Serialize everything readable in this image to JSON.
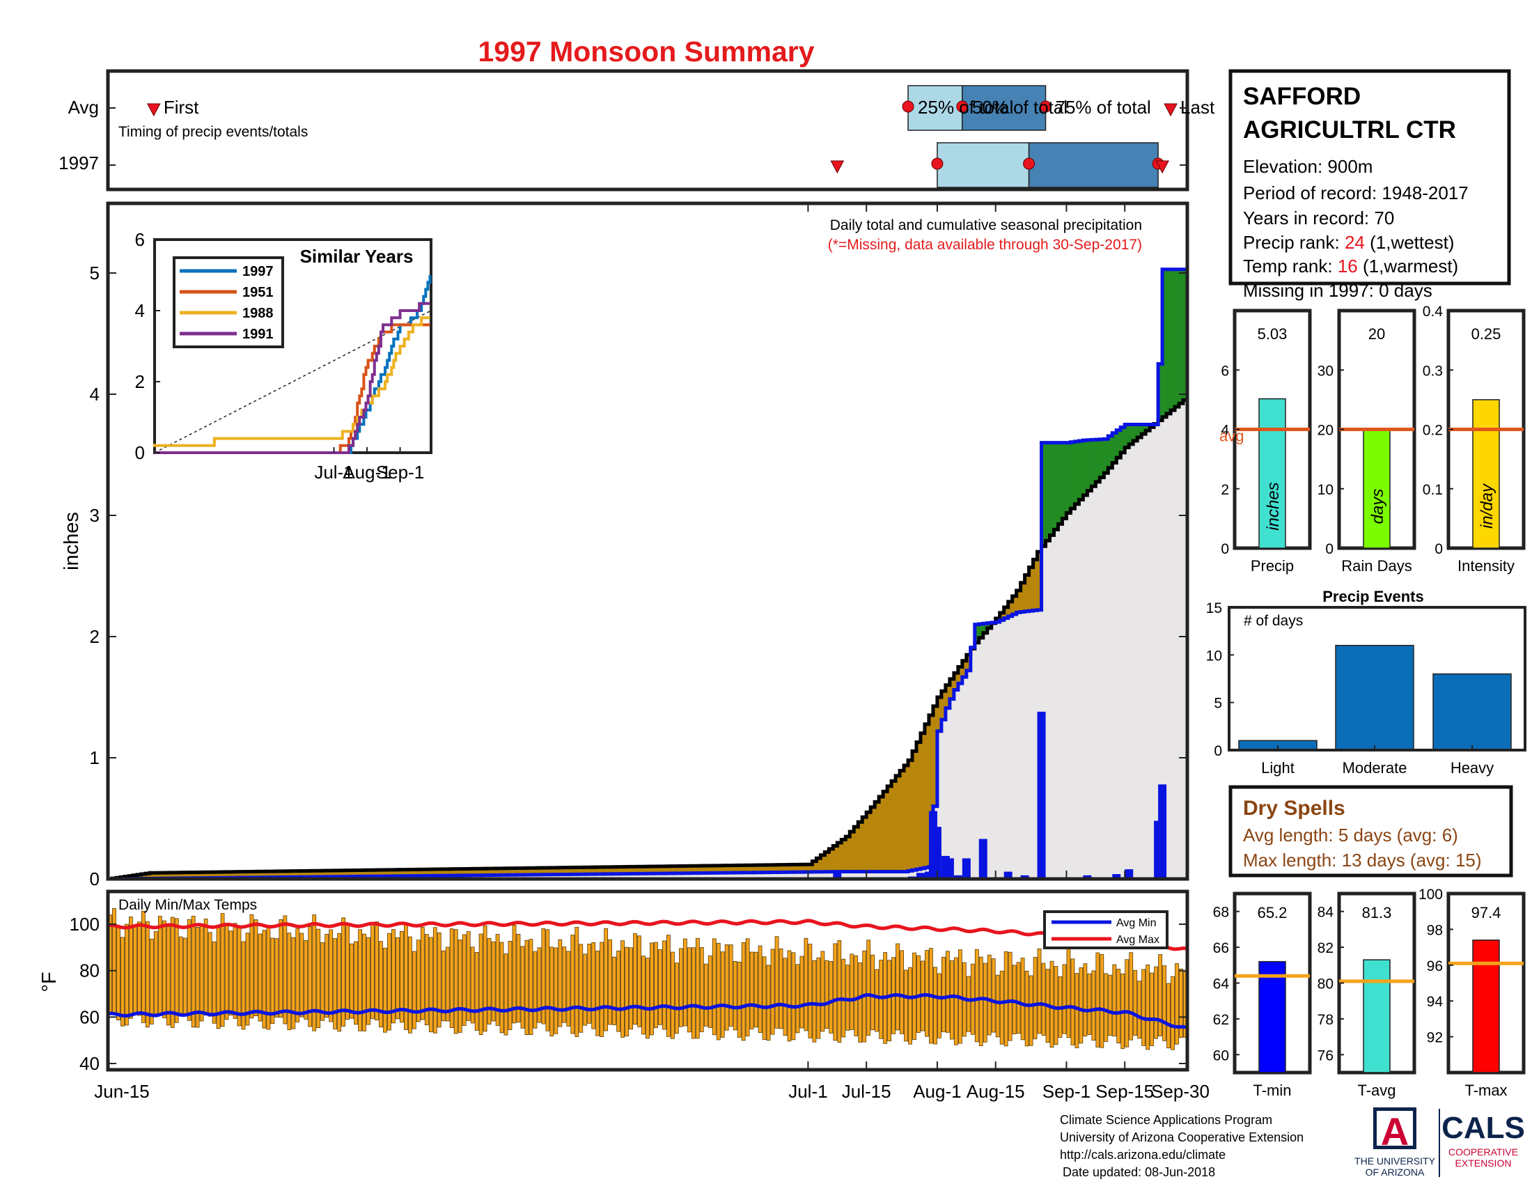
{
  "title": "1997 Monsoon Summary",
  "colors": {
    "title": "#e41a1c",
    "deficit_fill": "#b8860b",
    "surplus_fill": "#228b22",
    "normal_fill": "#e8e6e6",
    "obs_line": "#0a14e0",
    "daily_bar": "#0a14e0",
    "temp_bar": "#f5a31a",
    "avg_min": "#0a14e0",
    "avg_max": "#e8141e",
    "light_blue": "#add8e6",
    "steel_blue": "#4682b4",
    "marker_red": "#e8141e",
    "dry_spell_text": "#8b4513",
    "rank_red": "#e8141e",
    "events_bar": "#0b6db8"
  },
  "timing": {
    "rows": [
      "Avg",
      "1997"
    ],
    "caption": "Timing of precip events/totals",
    "labels": {
      "first": "First",
      "p25": "25% of total",
      "p50": "50% of total",
      "p75": "75% of total",
      "last": "Last"
    },
    "avg": {
      "first": "06-26",
      "p25": "07-25",
      "p50": "08-07",
      "p75": "08-27",
      "last": "09-26"
    },
    "y1997": {
      "first": "07-08",
      "p25": "08-01",
      "p50": "08-23",
      "p75": "09-23",
      "last": "09-24"
    }
  },
  "station": {
    "name_line1": "SAFFORD",
    "name_line2": "AGRICULTRL CTR",
    "elevation": "Elevation: 900m",
    "period": "Period of record: 1948-2017",
    "years": "Years in record: 70",
    "precip_rank_prefix": "Precip rank: ",
    "precip_rank_value": "24",
    "precip_rank_suffix": " (1,wettest)",
    "temp_rank_prefix": "Temp rank: ",
    "temp_rank_value": "16",
    "temp_rank_suffix": " (1,warmest)",
    "missing": "Missing in 1997: 0 days"
  },
  "main_chart": {
    "note1": "Daily total and cumulative seasonal precipitation",
    "note2": "(*=Missing, data available through 30-Sep-2017)",
    "ylabel": "inches",
    "yticks": [
      0,
      1,
      2,
      3,
      4,
      5
    ],
    "xticks": [
      "Jun-15",
      "Jul-1",
      "Jul-15",
      "Aug-1",
      "Aug-15",
      "Sep-1",
      "Sep-15",
      "Sep-30"
    ]
  },
  "inset": {
    "title": "Similar Years",
    "xticks": [
      "Jul-1",
      "Aug-1",
      "Sep-1"
    ],
    "yticks": [
      0,
      2,
      4,
      6
    ],
    "legend": [
      "1997",
      "1951",
      "1988",
      "1991"
    ],
    "colors": [
      "#0072bd",
      "#d95319",
      "#edb120",
      "#7e2f8e"
    ]
  },
  "temps_chart": {
    "label": "Daily Min/Max Temps",
    "ylabel": "°F",
    "yticks": [
      40,
      60,
      80,
      100
    ],
    "legend_min": "Avg Min",
    "legend_max": "Avg Max"
  },
  "summary_bars": [
    {
      "label": "Precip",
      "value_text": "5.03",
      "value": 5.03,
      "avg": 4.0,
      "unit": "inches",
      "ymax": 8,
      "yticks": [
        0,
        2,
        4,
        6
      ],
      "color": "#40e0d0",
      "avg_label": "avg"
    },
    {
      "label": "Rain Days",
      "value_text": "20",
      "value": 20,
      "avg": 20,
      "unit": "days",
      "ymax": 40,
      "yticks": [
        0,
        10,
        20,
        30
      ],
      "color": "#7cfc00"
    },
    {
      "label": "Intensity",
      "value_text": "0.25",
      "value": 0.25,
      "avg": 0.2,
      "unit": "in/day",
      "ymax": 0.4,
      "yticks": [
        0,
        0.1,
        0.2,
        0.3,
        0.4
      ],
      "color": "#ffd700"
    }
  ],
  "events": {
    "title": "Precip Events",
    "annotation": "# of days",
    "categories": [
      "Light",
      "Moderate",
      "Heavy"
    ],
    "values": [
      1,
      11,
      8
    ],
    "yticks": [
      0,
      5,
      10,
      15
    ]
  },
  "dry_spells": {
    "title": "Dry Spells",
    "avg": "Avg length: 5 days (avg: 6)",
    "max": "Max length: 13 days (avg: 15)"
  },
  "temp_summary": [
    {
      "label": "T-min",
      "value_text": "65.2",
      "value": 65.2,
      "avg": 64.4,
      "ylim": [
        59,
        69
      ],
      "yticks": [
        60,
        62,
        64,
        66,
        68
      ],
      "color": "#0000ff"
    },
    {
      "label": "T-avg",
      "value_text": "81.3",
      "value": 81.3,
      "avg": 80.1,
      "ylim": [
        75,
        85
      ],
      "yticks": [
        76,
        78,
        80,
        82,
        84
      ],
      "color": "#40e0d0"
    },
    {
      "label": "T-max",
      "value_text": "97.4",
      "value": 97.4,
      "avg": 96.1,
      "ylim": [
        90,
        100
      ],
      "yticks": [
        92,
        94,
        96,
        98,
        100
      ],
      "color": "#ff0000"
    }
  ],
  "footer": {
    "line1": "Climate Science Applications Program",
    "line2": "University of Arizona Cooperative Extension",
    "line3": "http://cals.arizona.edu/climate",
    "line4": "Date updated: 08-Jun-2018"
  },
  "logos": {
    "ua_letter": "A",
    "ua_line1": "THE UNIVERSITY",
    "ua_line2": "OF ARIZONA",
    "cals": "CALS",
    "cals_line1": "COOPERATIVE",
    "cals_line2": "EXTENSION"
  },
  "chart_data": [
    {
      "type": "area",
      "title": "1997 Monsoon Summary",
      "ylabel": "inches",
      "ylim": [
        0,
        5.5
      ],
      "x_range": [
        "06-15",
        "09-30"
      ],
      "series": [
        {
          "name": "normal cumulative",
          "x": [
            "06-15",
            "06-25",
            "07-01",
            "07-10",
            "07-15",
            "07-25",
            "08-01",
            "08-05",
            "08-10",
            "08-15",
            "08-20",
            "08-25",
            "09-01",
            "09-10",
            "09-15",
            "09-20",
            "09-30"
          ],
          "values": [
            0,
            0.05,
            0.12,
            0.35,
            0.55,
            0.98,
            1.5,
            1.7,
            1.95,
            2.15,
            2.38,
            2.7,
            3.02,
            3.35,
            3.56,
            3.7,
            3.98
          ]
        },
        {
          "name": "1997 cumulative",
          "x": [
            "06-15",
            "07-08",
            "07-24",
            "07-30",
            "07-31",
            "08-01",
            "08-03",
            "08-05",
            "08-08",
            "08-10",
            "08-15",
            "08-20",
            "08-25",
            "08-26",
            "09-01",
            "09-05",
            "09-10",
            "09-12",
            "09-15",
            "09-22",
            "09-23",
            "09-24",
            "09-30"
          ],
          "values": [
            0,
            0.06,
            0.06,
            0.1,
            0.6,
            1.22,
            1.41,
            1.56,
            1.72,
            2.1,
            2.12,
            2.2,
            2.22,
            3.6,
            3.6,
            3.62,
            3.63,
            3.68,
            3.75,
            3.75,
            4.25,
            5.03,
            5.03
          ]
        },
        {
          "name": "1997 daily",
          "x": [
            "07-08",
            "07-26",
            "07-28",
            "07-30",
            "07-31",
            "08-01",
            "08-03",
            "08-04",
            "08-06",
            "08-08",
            "08-12",
            "08-18",
            "08-22",
            "08-26",
            "09-06",
            "09-13",
            "09-16",
            "09-23",
            "09-24"
          ],
          "values": [
            0.06,
            0.02,
            0.05,
            0.06,
            0.56,
            0.43,
            0.19,
            0.17,
            0.03,
            0.17,
            0.33,
            0.06,
            0.03,
            1.38,
            0.03,
            0.04,
            0.08,
            0.48,
            0.78
          ]
        }
      ]
    },
    {
      "type": "line",
      "title": "Similar Years",
      "ylim": [
        0,
        6
      ],
      "x": [
        "06-15",
        "07-01",
        "07-15",
        "08-01",
        "08-15",
        "09-01",
        "09-15",
        "09-30"
      ],
      "series": [
        {
          "name": "1997",
          "values": [
            0,
            0.06,
            0.06,
            1.22,
            2.2,
            3.6,
            3.75,
            5.03
          ]
        },
        {
          "name": "1951",
          "values": [
            0,
            0.02,
            0.3,
            2.5,
            3.4,
            3.6,
            3.6,
            3.7
          ]
        },
        {
          "name": "1988",
          "values": [
            0.25,
            0.4,
            0.6,
            1.4,
            1.8,
            3.0,
            3.6,
            3.9
          ]
        },
        {
          "name": "1991",
          "values": [
            0,
            0,
            0.1,
            1.5,
            3.5,
            3.9,
            4.05,
            4.25
          ]
        }
      ]
    },
    {
      "type": "bar",
      "title": "Daily Min/Max Temps",
      "ylabel": "°F",
      "ylim": [
        40,
        105
      ],
      "x_range": [
        "06-15",
        "09-30"
      ],
      "series": [
        {
          "name": "Avg Min",
          "x": [
            "06-15",
            "07-01",
            "07-15",
            "08-01",
            "08-15",
            "09-01",
            "09-15",
            "09-30"
          ],
          "values": [
            61,
            65,
            69,
            69,
            67,
            64,
            62,
            55
          ]
        },
        {
          "name": "Avg Max",
          "x": [
            "06-15",
            "07-01",
            "07-15",
            "08-01",
            "08-15",
            "09-01",
            "09-15",
            "09-30"
          ],
          "values": [
            99,
            101,
            99,
            98,
            97,
            95,
            93,
            89
          ]
        }
      ]
    },
    {
      "type": "bar",
      "title": "Precip Events",
      "categories": [
        "Light",
        "Moderate",
        "Heavy"
      ],
      "values": [
        1,
        11,
        8
      ],
      "ylim": [
        0,
        15
      ]
    }
  ]
}
